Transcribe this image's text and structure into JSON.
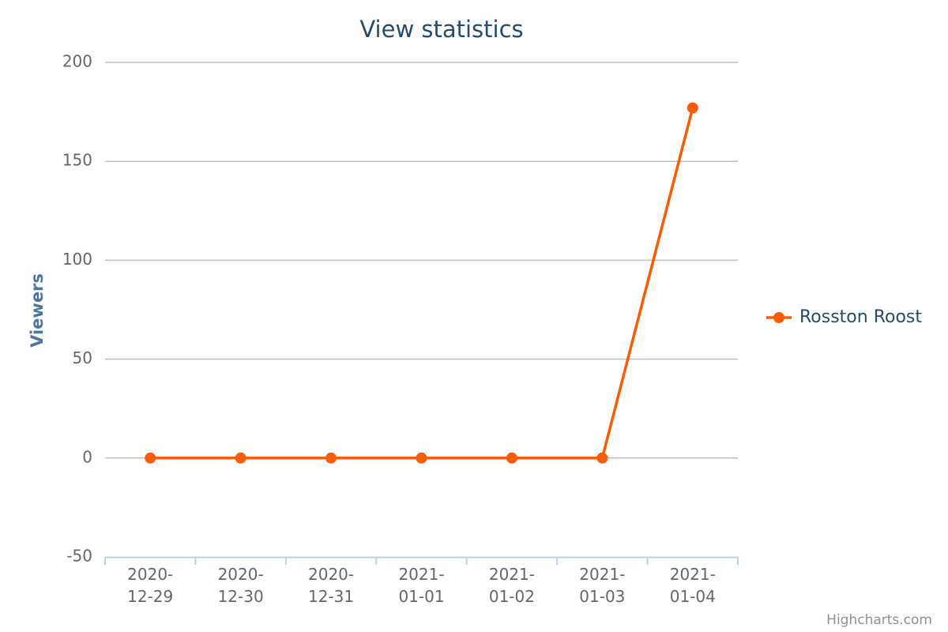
{
  "chart_data": {
    "type": "line",
    "title": "View statistics",
    "y_axis_label": "Viewers",
    "categories": [
      "2020-12-29",
      "2020-12-30",
      "2020-12-31",
      "2021-01-01",
      "2021-01-02",
      "2021-01-03",
      "2021-01-04"
    ],
    "series": [
      {
        "name": "Rosston Roost",
        "color": "#f85c06",
        "values": [
          0,
          0,
          0,
          0,
          0,
          0,
          177
        ]
      }
    ],
    "ylim": [
      -50,
      200
    ],
    "yticks": [
      -50,
      0,
      50,
      100,
      150,
      200
    ],
    "grid": true,
    "legend": "right",
    "credits": "Highcharts.com"
  }
}
